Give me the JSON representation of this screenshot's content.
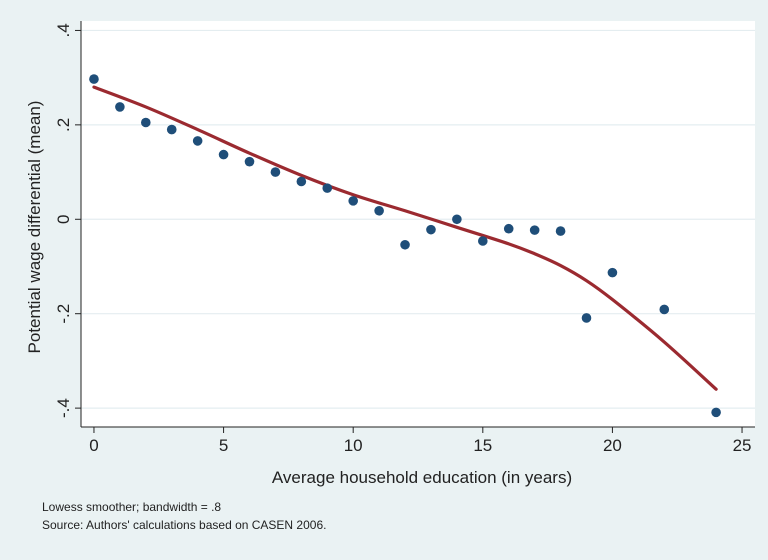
{
  "chart_data": {
    "type": "scatter",
    "title": "",
    "xlabel": "Average household education (in years)",
    "ylabel": "Potential wage differential (mean)",
    "xlim": [
      -0.5,
      25.5
    ],
    "ylim": [
      -0.44,
      0.42
    ],
    "x_ticks": [
      0,
      5,
      10,
      15,
      20,
      25
    ],
    "x_tick_labels": [
      "0",
      "5",
      "10",
      "15",
      "20",
      "25"
    ],
    "y_ticks": [
      -0.4,
      -0.2,
      0,
      0.2,
      0.4
    ],
    "y_tick_labels": [
      "-.4",
      "-.2",
      "0",
      ".2",
      ".4"
    ],
    "grid": true,
    "legend": "none",
    "colors": {
      "points": "#1f4e79",
      "line": "#9b2a30",
      "plot_background": "#ffffff",
      "figure_background": "#eaf2f3",
      "grid": "#e4edf0"
    },
    "series": [
      {
        "kind": "scatter",
        "x": [
          0,
          1,
          2,
          3,
          4,
          5,
          6,
          7,
          8,
          9,
          10,
          11,
          12,
          13,
          14,
          15,
          16,
          17,
          18,
          19,
          20,
          22,
          24
        ],
        "y": [
          0.297,
          0.238,
          0.205,
          0.19,
          0.166,
          0.137,
          0.122,
          0.1,
          0.08,
          0.066,
          0.039,
          0.018,
          -0.054,
          -0.022,
          0.0,
          -0.046,
          -0.02,
          -0.023,
          -0.025,
          -0.209,
          -0.113,
          -0.191,
          -0.409
        ]
      },
      {
        "kind": "line",
        "x": [
          0,
          2,
          4,
          6,
          8,
          10,
          12,
          14,
          16,
          17,
          18,
          19,
          20,
          22,
          24
        ],
        "y": [
          0.28,
          0.238,
          0.19,
          0.14,
          0.093,
          0.052,
          0.018,
          -0.017,
          -0.052,
          -0.073,
          -0.098,
          -0.13,
          -0.17,
          -0.26,
          -0.36
        ]
      }
    ],
    "notes": [
      "Lowess smoother; bandwidth = .8",
      "Source: Authors' calculations based on CASEN 2006."
    ]
  }
}
